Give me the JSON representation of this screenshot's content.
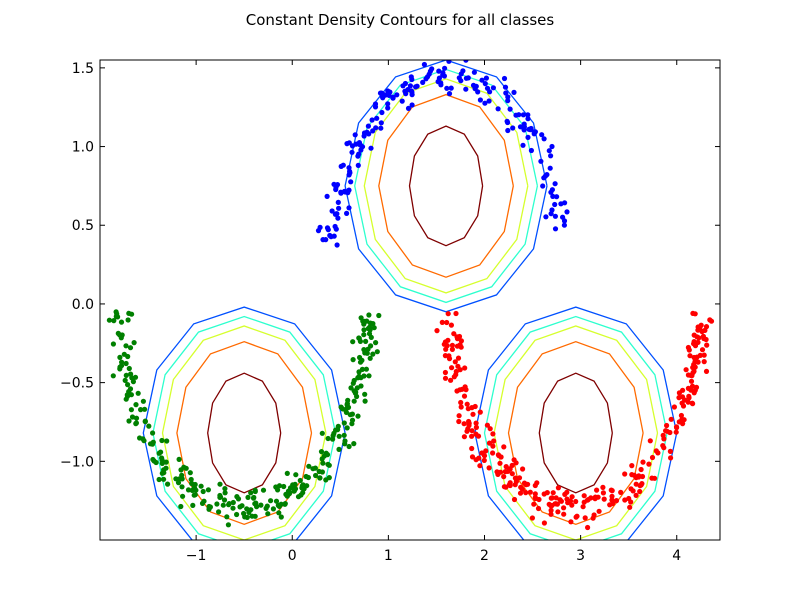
{
  "chart_data": {
    "type": "scatter",
    "title": "Constant Density Contours for all classes",
    "xlabel": "",
    "ylabel": "",
    "xlim": [
      -2.0,
      4.45
    ],
    "ylim": [
      -1.5,
      1.55
    ],
    "grid": false,
    "legend": "none",
    "x_ticks": [
      -1,
      0,
      1,
      2,
      3,
      4
    ],
    "x_tick_labels": [
      "−1",
      "0",
      "1",
      "2",
      "3",
      "4"
    ],
    "y_ticks": [
      1.5,
      1.0,
      0.5,
      0.0,
      -0.5,
      -1.0
    ],
    "y_tick_labels": [
      "1.5",
      "1.0",
      "0.5",
      "0.0",
      "−0.5",
      "−1.0"
    ],
    "series": [
      {
        "color": "#0000ff",
        "arc": {
          "cx": 1.6,
          "cy": 0.3,
          "r": 1.2,
          "t0": 0.05,
          "t1": 0.98,
          "spread": 0.12
        },
        "count": 200
      },
      {
        "color": "#008000",
        "arc": {
          "cx": -0.5,
          "cy": -0.05,
          "r": 1.3,
          "t0": 1.0,
          "t1": 2.0,
          "spread": 0.12
        },
        "count": 300
      },
      {
        "color": "#ff0000",
        "arc": {
          "cx": 2.95,
          "cy": -0.05,
          "r": 1.3,
          "t0": 1.0,
          "t1": 2.0,
          "spread": 0.12
        },
        "count": 300
      }
    ],
    "contour_levels": [
      {
        "color": "#7f0000",
        "dx": 0.38,
        "dy": 0.38
      },
      {
        "color": "#ff6a00",
        "dx": 0.7,
        "dy": 0.58
      },
      {
        "color": "#d6ff2d",
        "dx": 0.85,
        "dy": 0.68
      },
      {
        "color": "#2dffce",
        "dx": 0.95,
        "dy": 0.74
      },
      {
        "color": "#0050ff",
        "dx": 1.05,
        "dy": 0.8
      }
    ],
    "contour_centers": [
      {
        "cx": 1.6,
        "cy": 0.75
      },
      {
        "cx": -0.5,
        "cy": -0.82
      },
      {
        "cx": 2.95,
        "cy": -0.82
      }
    ]
  }
}
